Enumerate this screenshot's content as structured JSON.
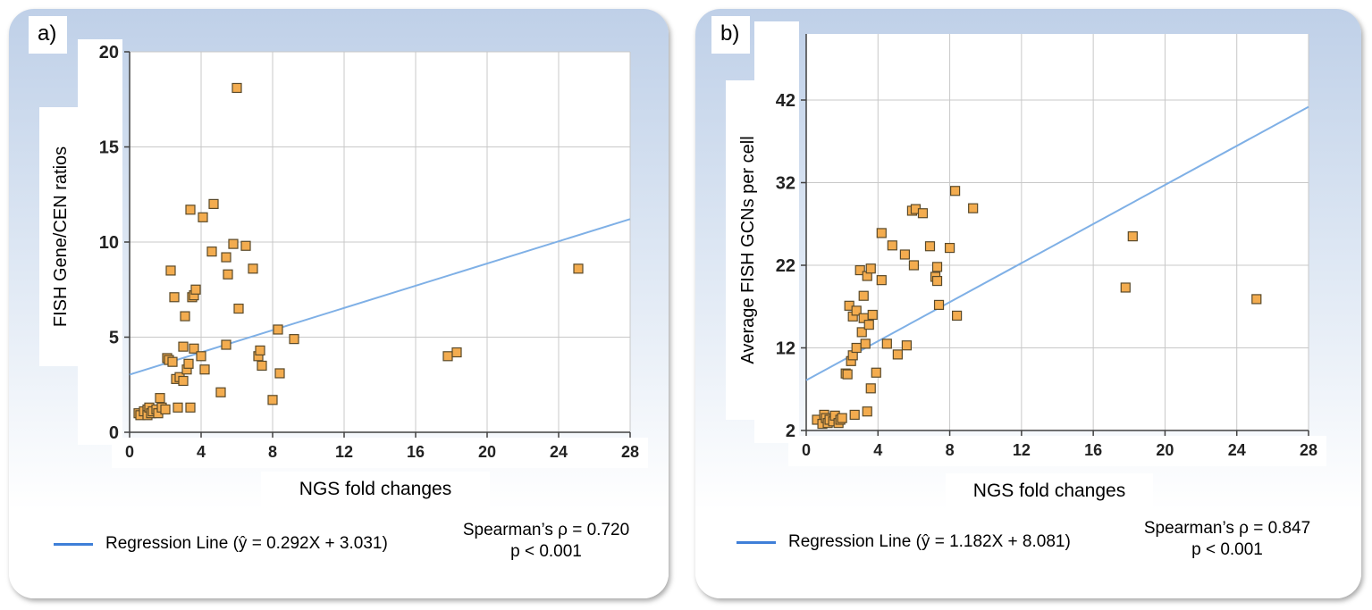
{
  "chart_data": [
    {
      "type": "scatter",
      "panel_label": "a)",
      "xlabel": "NGS fold changes",
      "ylabel": "FISH Gene/CEN ratios",
      "xlim": [
        0,
        28
      ],
      "ylim": [
        0,
        20
      ],
      "xticks": [
        0,
        4,
        8,
        12,
        16,
        20,
        24,
        28
      ],
      "yticks": [
        0,
        5,
        10,
        15,
        20
      ],
      "grid": true,
      "regression": {
        "slope": 0.292,
        "intercept": 3.031
      },
      "legend_label": "Regression Line (ŷ = 0.292X + 3.031)",
      "stats_line1": "Spearman’s ρ = 0.720",
      "stats_line2": "p < 0.001",
      "points": [
        [
          0.5,
          1.0
        ],
        [
          0.6,
          0.9
        ],
        [
          0.8,
          1.1
        ],
        [
          1.0,
          1.2
        ],
        [
          1.0,
          0.9
        ],
        [
          1.1,
          1.3
        ],
        [
          1.2,
          1.0
        ],
        [
          1.3,
          1.1
        ],
        [
          1.5,
          1.2
        ],
        [
          1.6,
          1.0
        ],
        [
          1.7,
          1.8
        ],
        [
          1.8,
          1.3
        ],
        [
          2.0,
          1.2
        ],
        [
          2.1,
          3.9
        ],
        [
          2.2,
          3.8
        ],
        [
          2.3,
          8.5
        ],
        [
          2.4,
          3.7
        ],
        [
          2.5,
          7.1
        ],
        [
          2.6,
          2.8
        ],
        [
          2.7,
          1.3
        ],
        [
          2.8,
          2.9
        ],
        [
          3.0,
          4.5
        ],
        [
          3.0,
          2.7
        ],
        [
          3.1,
          6.1
        ],
        [
          3.2,
          3.3
        ],
        [
          3.3,
          3.6
        ],
        [
          3.4,
          11.7
        ],
        [
          3.4,
          1.3
        ],
        [
          3.5,
          7.1
        ],
        [
          3.6,
          4.4
        ],
        [
          3.6,
          7.2
        ],
        [
          3.7,
          7.5
        ],
        [
          4.0,
          4.0
        ],
        [
          4.1,
          11.3
        ],
        [
          4.2,
          3.3
        ],
        [
          4.6,
          9.5
        ],
        [
          4.7,
          12.0
        ],
        [
          5.1,
          2.1
        ],
        [
          5.4,
          4.6
        ],
        [
          5.4,
          9.2
        ],
        [
          5.5,
          8.3
        ],
        [
          5.8,
          9.9
        ],
        [
          6.0,
          18.1
        ],
        [
          6.1,
          6.5
        ],
        [
          6.5,
          9.8
        ],
        [
          6.9,
          8.6
        ],
        [
          7.2,
          4.0
        ],
        [
          7.3,
          4.3
        ],
        [
          7.4,
          3.5
        ],
        [
          8.0,
          1.7
        ],
        [
          8.3,
          5.4
        ],
        [
          8.4,
          3.1
        ],
        [
          9.2,
          4.9
        ],
        [
          17.8,
          4.0
        ],
        [
          18.3,
          4.2
        ],
        [
          25.1,
          8.6
        ]
      ]
    },
    {
      "type": "scatter",
      "panel_label": "b)",
      "xlabel": "NGS fold changes",
      "ylabel": "Average FISH GCNs per cell",
      "xlim": [
        0,
        28
      ],
      "ylim": [
        2,
        50
      ],
      "xticks": [
        0,
        4,
        8,
        12,
        16,
        20,
        24,
        28
      ],
      "yticks": [
        2,
        12,
        22,
        32,
        42
      ],
      "grid": true,
      "regression": {
        "slope": 1.182,
        "intercept": 8.081
      },
      "legend_label": "Regression Line (ŷ = 1.182X + 8.081)",
      "stats_line1": "Spearman’s ρ = 0.847",
      "stats_line2": "p < 0.001",
      "points": [
        [
          0.6,
          3.3
        ],
        [
          0.9,
          2.8
        ],
        [
          1.0,
          3.9
        ],
        [
          1.1,
          3.5
        ],
        [
          1.2,
          2.9
        ],
        [
          1.3,
          3.3
        ],
        [
          1.5,
          3.1
        ],
        [
          1.6,
          3.8
        ],
        [
          1.8,
          2.9
        ],
        [
          1.9,
          3.3
        ],
        [
          2.0,
          3.5
        ],
        [
          2.2,
          8.9
        ],
        [
          2.3,
          8.8
        ],
        [
          2.4,
          17.1
        ],
        [
          2.5,
          10.4
        ],
        [
          2.6,
          15.8
        ],
        [
          2.6,
          11.1
        ],
        [
          2.7,
          3.9
        ],
        [
          2.8,
          12.0
        ],
        [
          2.8,
          16.5
        ],
        [
          3.0,
          21.4
        ],
        [
          3.1,
          13.9
        ],
        [
          3.2,
          15.6
        ],
        [
          3.2,
          18.3
        ],
        [
          3.3,
          12.5
        ],
        [
          3.4,
          4.3
        ],
        [
          3.4,
          20.7
        ],
        [
          3.5,
          14.8
        ],
        [
          3.6,
          21.6
        ],
        [
          3.6,
          7.1
        ],
        [
          3.7,
          16.0
        ],
        [
          3.9,
          9.0
        ],
        [
          4.2,
          20.2
        ],
        [
          4.2,
          25.9
        ],
        [
          4.5,
          12.5
        ],
        [
          4.8,
          24.4
        ],
        [
          5.1,
          11.2
        ],
        [
          5.5,
          23.3
        ],
        [
          5.6,
          12.3
        ],
        [
          5.9,
          28.6
        ],
        [
          6.0,
          22.0
        ],
        [
          6.1,
          28.8
        ],
        [
          6.5,
          28.3
        ],
        [
          6.9,
          24.3
        ],
        [
          7.2,
          20.6
        ],
        [
          7.3,
          21.8
        ],
        [
          7.3,
          20.1
        ],
        [
          7.4,
          17.2
        ],
        [
          8.0,
          24.1
        ],
        [
          8.3,
          31.0
        ],
        [
          8.4,
          15.9
        ],
        [
          9.3,
          28.9
        ],
        [
          17.8,
          19.3
        ],
        [
          18.2,
          25.5
        ],
        [
          25.1,
          17.9
        ]
      ]
    }
  ]
}
